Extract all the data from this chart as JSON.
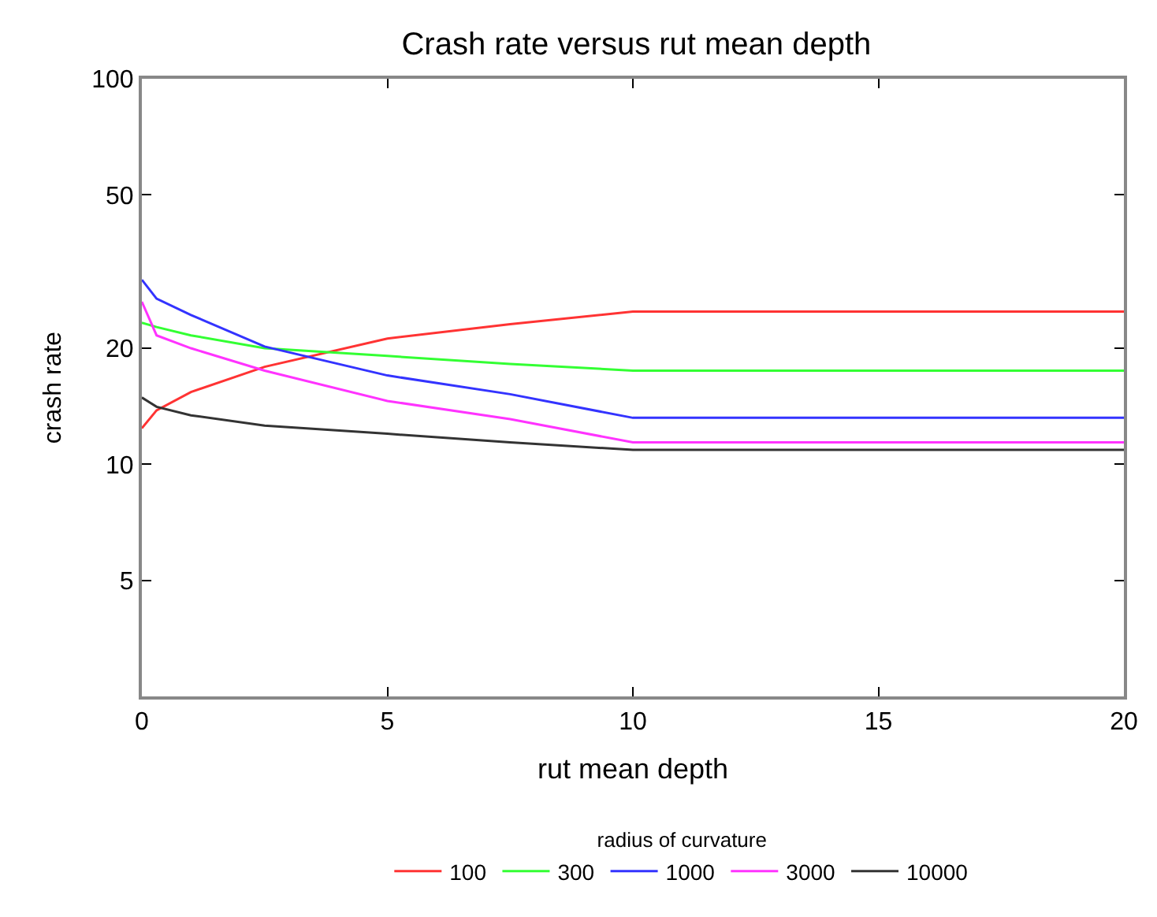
{
  "chart_data": {
    "type": "line",
    "title": "Crash rate versus rut mean depth",
    "xlabel": "rut mean depth",
    "ylabel": "crash rate",
    "legend_title": "radius of curvature",
    "x": [
      0,
      0.3,
      1,
      2.5,
      5,
      7.5,
      10,
      20
    ],
    "series": [
      {
        "name": "100",
        "color": "#ff3333",
        "values": [
          12.4,
          13.8,
          15.4,
          17.9,
          21.2,
          23.1,
          24.9,
          24.9
        ]
      },
      {
        "name": "300",
        "color": "#33ff33",
        "values": [
          23.3,
          22.7,
          21.6,
          20.0,
          19.1,
          18.2,
          17.5,
          17.5
        ]
      },
      {
        "name": "1000",
        "color": "#3333ff",
        "values": [
          30.1,
          26.9,
          24.4,
          20.2,
          17.0,
          15.2,
          13.2,
          13.2
        ]
      },
      {
        "name": "3000",
        "color": "#ff33ff",
        "values": [
          26.4,
          21.6,
          20.0,
          17.5,
          14.6,
          13.1,
          11.4,
          11.4
        ]
      },
      {
        "name": "10000",
        "color": "#333333",
        "values": [
          14.9,
          14.1,
          13.4,
          12.6,
          12.0,
          11.4,
          10.9,
          10.9
        ]
      }
    ],
    "log": "y",
    "xlim": [
      0,
      20
    ],
    "xticks": [
      0,
      5,
      10,
      15,
      20
    ],
    "ylim": [
      2.5,
      100
    ],
    "yticks": [
      5,
      10,
      20,
      50,
      100
    ],
    "legend": "bottom",
    "marker": "none",
    "line_style": "solid"
  }
}
